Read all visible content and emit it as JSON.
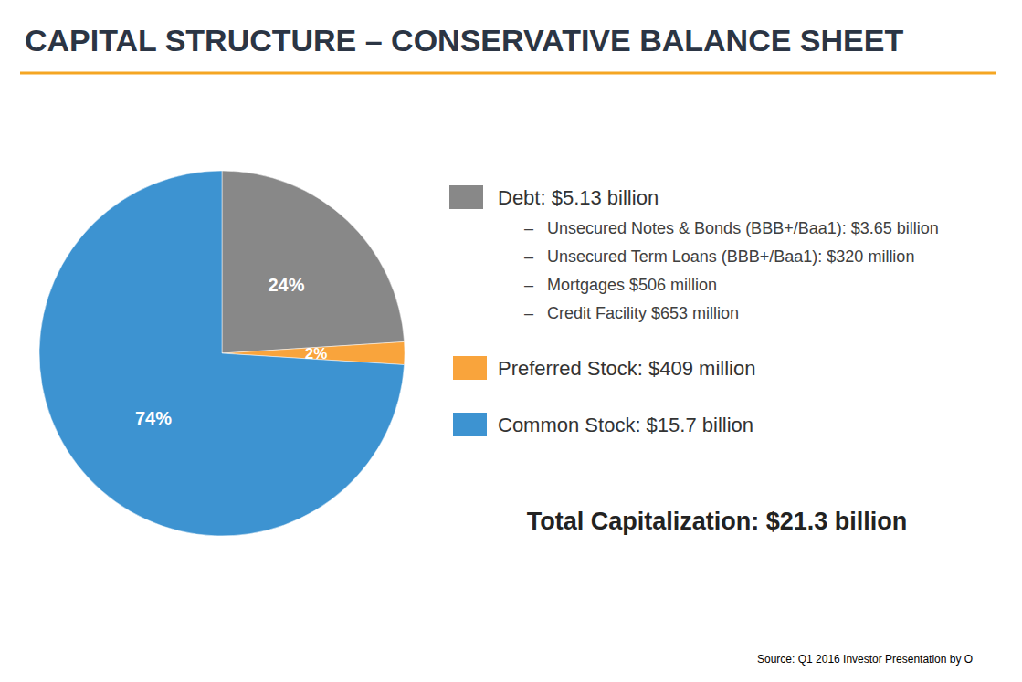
{
  "chart_data": {
    "type": "pie",
    "title": "CAPITAL STRUCTURE – CONSERVATIVE BALANCE SHEET",
    "categories": [
      "Debt: $5.13 billion",
      "Preferred Stock: $409 million",
      "Common Stock: $15.7 billion"
    ],
    "values": [
      24,
      2,
      74
    ],
    "value_labels": [
      "24%",
      "2%",
      "74%"
    ],
    "colors": [
      "#888888",
      "#f9a43c",
      "#3d93d1"
    ],
    "data_labels": true,
    "details": [
      [
        "–   Unsecured Notes & Bonds (BBB+/Baa1): $3.65 billion",
        "–   Unsecured Term Loans (BBB+/Baa1): $320 million",
        "–   Mortgages $506 million",
        "–   Credit Facility $653 million"
      ],
      [],
      []
    ],
    "annotations": [
      "Total Capitalization: $21.3 billion",
      "Source: Q1 2016 Investor Presentation by O"
    ]
  }
}
